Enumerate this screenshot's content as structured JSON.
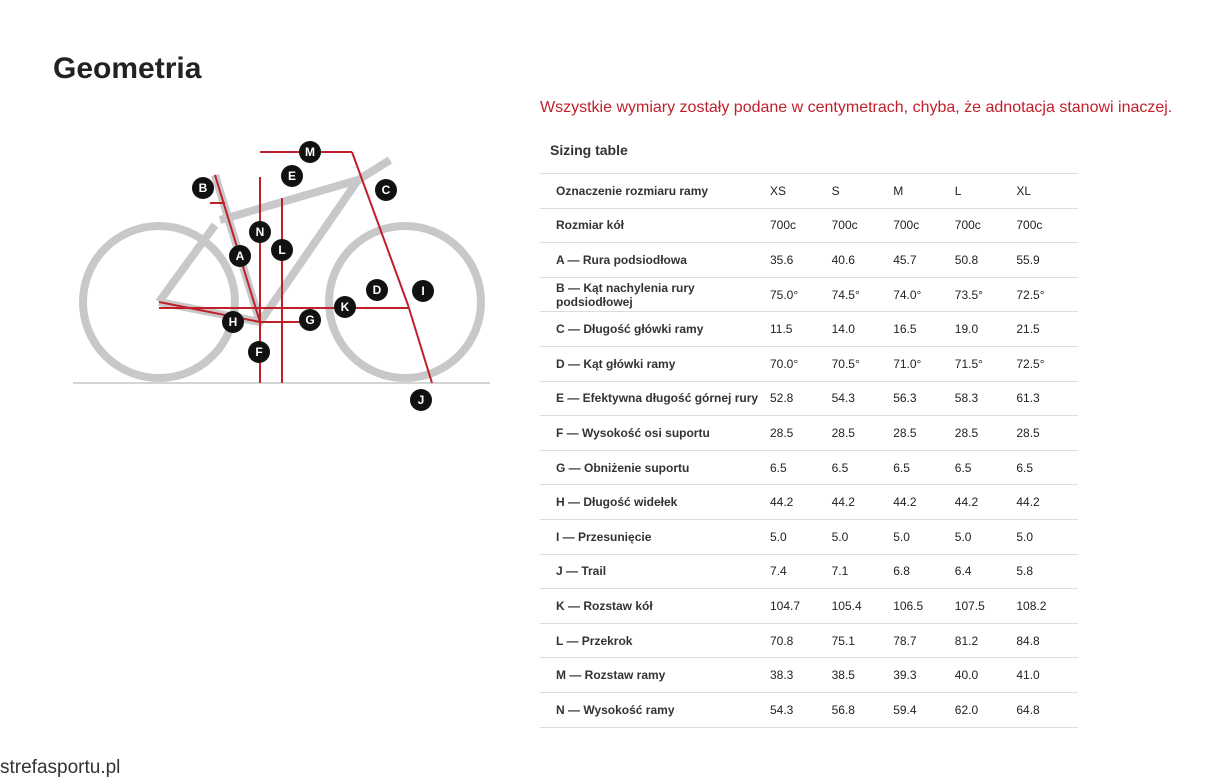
{
  "header": {
    "title": "Geometria"
  },
  "note": "Wszystkie wymiary zostały podane w centymetrach, chyba, że adnotacja stanowi inaczej.",
  "table": {
    "caption": "Sizing table",
    "columns": [
      "Oznaczenie rozmiaru ramy",
      "XS",
      "S",
      "M",
      "L",
      "XL"
    ],
    "rows": [
      [
        "Rozmiar kół",
        "700c",
        "700c",
        "700c",
        "700c",
        "700c"
      ],
      [
        "A — Rura podsiodłowa",
        "35.6",
        "40.6",
        "45.7",
        "50.8",
        "55.9"
      ],
      [
        "B — Kąt nachylenia rury podsiodłowej",
        "75.0°",
        "74.5°",
        "74.0°",
        "73.5°",
        "72.5°"
      ],
      [
        "C — Długość główki ramy",
        "11.5",
        "14.0",
        "16.5",
        "19.0",
        "21.5"
      ],
      [
        "D — Kąt główki ramy",
        "70.0°",
        "70.5°",
        "71.0°",
        "71.5°",
        "72.5°"
      ],
      [
        "E — Efektywna długość górnej rury",
        "52.8",
        "54.3",
        "56.3",
        "58.3",
        "61.3"
      ],
      [
        "F — Wysokość osi suportu",
        "28.5",
        "28.5",
        "28.5",
        "28.5",
        "28.5"
      ],
      [
        "G — Obniżenie suportu",
        "6.5",
        "6.5",
        "6.5",
        "6.5",
        "6.5"
      ],
      [
        "H — Długość widełek",
        "44.2",
        "44.2",
        "44.2",
        "44.2",
        "44.2"
      ],
      [
        "I — Przesunięcie",
        "5.0",
        "5.0",
        "5.0",
        "5.0",
        "5.0"
      ],
      [
        "J — Trail",
        "7.4",
        "7.1",
        "6.8",
        "6.4",
        "5.8"
      ],
      [
        "K — Rozstaw kół",
        "104.7",
        "105.4",
        "106.5",
        "107.5",
        "108.2"
      ],
      [
        "L — Przekrok",
        "70.8",
        "75.1",
        "78.7",
        "81.2",
        "84.8"
      ],
      [
        "M — Rozstaw ramy",
        "38.3",
        "38.5",
        "39.3",
        "40.0",
        "41.0"
      ],
      [
        "N — Wysokość ramy",
        "54.3",
        "56.8",
        "59.4",
        "62.0",
        "64.8"
      ]
    ]
  },
  "diagram": {
    "labels": [
      "A",
      "B",
      "C",
      "D",
      "E",
      "F",
      "G",
      "H",
      "I",
      "J",
      "K",
      "L",
      "M",
      "N"
    ]
  },
  "watermark": "strefasportu.pl"
}
